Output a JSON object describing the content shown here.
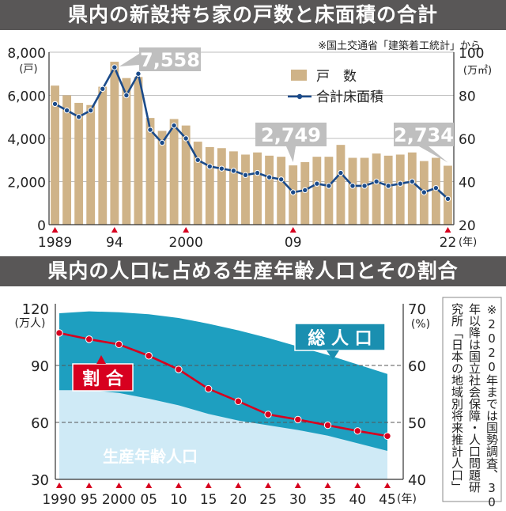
{
  "chart_data": [
    {
      "type": "bar",
      "title": "県内の新設持ち家の戸数と床面積の合計",
      "source_note": "※国土交通省「建築着工統計」から",
      "y_left_label": "(戸)",
      "y_right_label": "(万㎡)",
      "y_left_range": [
        0,
        8000
      ],
      "y_right_range": [
        20,
        100
      ],
      "y_left_ticks": [
        "8,000",
        "6,000",
        "4,000",
        "2,000",
        "0"
      ],
      "y_right_ticks": [
        "100",
        "80",
        "60",
        "40",
        "20"
      ],
      "x_tick_labels": [
        "1989",
        "94",
        "2000",
        "09",
        "22"
      ],
      "x_unit": "(年)",
      "x": [
        1989,
        1990,
        1991,
        1992,
        1993,
        1994,
        1995,
        1996,
        1997,
        1998,
        1999,
        2000,
        2001,
        2002,
        2003,
        2004,
        2005,
        2006,
        2007,
        2008,
        2009,
        2010,
        2011,
        2012,
        2013,
        2014,
        2015,
        2016,
        2017,
        2018,
        2019,
        2020,
        2021,
        2022
      ],
      "series": [
        {
          "name": "戸　数",
          "axis": "left",
          "type": "bar",
          "color": "#cfb388",
          "values": [
            6450,
            6000,
            5650,
            5550,
            6400,
            7558,
            6800,
            6850,
            4950,
            4350,
            4900,
            4600,
            3850,
            3600,
            3550,
            3400,
            3250,
            3350,
            3200,
            3150,
            2749,
            2900,
            3150,
            3150,
            3700,
            3100,
            3100,
            3300,
            3200,
            3250,
            3350,
            2950,
            3100,
            2734
          ]
        },
        {
          "name": "合計床面積",
          "axis": "right",
          "type": "line",
          "color": "#1b4b8a",
          "values": [
            76,
            73,
            70,
            73,
            83,
            93,
            80,
            90,
            64,
            58,
            66,
            60,
            50,
            47,
            46,
            45,
            43,
            44,
            42,
            41,
            35,
            36,
            39,
            38,
            44,
            38,
            38,
            40,
            38,
            39,
            40,
            35,
            37,
            32
          ]
        }
      ],
      "annotations": [
        "7,558",
        "2,749",
        "2,734"
      ]
    },
    {
      "type": "area",
      "title": "県内の人口に占める生産年齢人口とその割合",
      "y_left_label": "(万人)",
      "y_right_label": "(%)",
      "y_left_range": [
        30,
        120
      ],
      "y_right_range": [
        40,
        70
      ],
      "y_left_ticks": [
        "120",
        "90",
        "60",
        "30"
      ],
      "y_right_ticks": [
        "70",
        "60",
        "50",
        "40"
      ],
      "x_tick_labels": [
        "1990",
        "95",
        "2000",
        "05",
        "10",
        "15",
        "20",
        "25",
        "30",
        "35",
        "40",
        "45"
      ],
      "x_unit": "(年)",
      "x": [
        1990,
        1995,
        2000,
        2005,
        2010,
        2015,
        2020,
        2025,
        2030,
        2035,
        2040,
        2045
      ],
      "series": [
        {
          "name": "総 人 口",
          "axis": "left",
          "type": "area",
          "color": "#1e9fc0",
          "values": [
            117.5,
            118.5,
            118,
            117,
            115,
            112,
            108.5,
            104.5,
            100,
            95.5,
            90.5,
            85.5
          ]
        },
        {
          "name": "生産年齢人口",
          "axis": "left",
          "type": "area",
          "color": "#cfeaf6",
          "values": [
            77,
            77,
            75.5,
            72.5,
            69,
            64.5,
            61,
            58.5,
            56,
            53,
            49,
            45
          ]
        },
        {
          "name": "割 合",
          "axis": "right",
          "type": "line",
          "color": "#d7001f",
          "values": [
            65.7,
            64.6,
            63.7,
            61.7,
            59.3,
            55.9,
            53.7,
            51.4,
            50.5,
            49.5,
            48.5,
            47.6
          ]
        }
      ],
      "note": "※2020年までは国勢調査、30年以降は国立社会保障・人口問題研究所「日本の地域別将来推計人口」"
    }
  ]
}
